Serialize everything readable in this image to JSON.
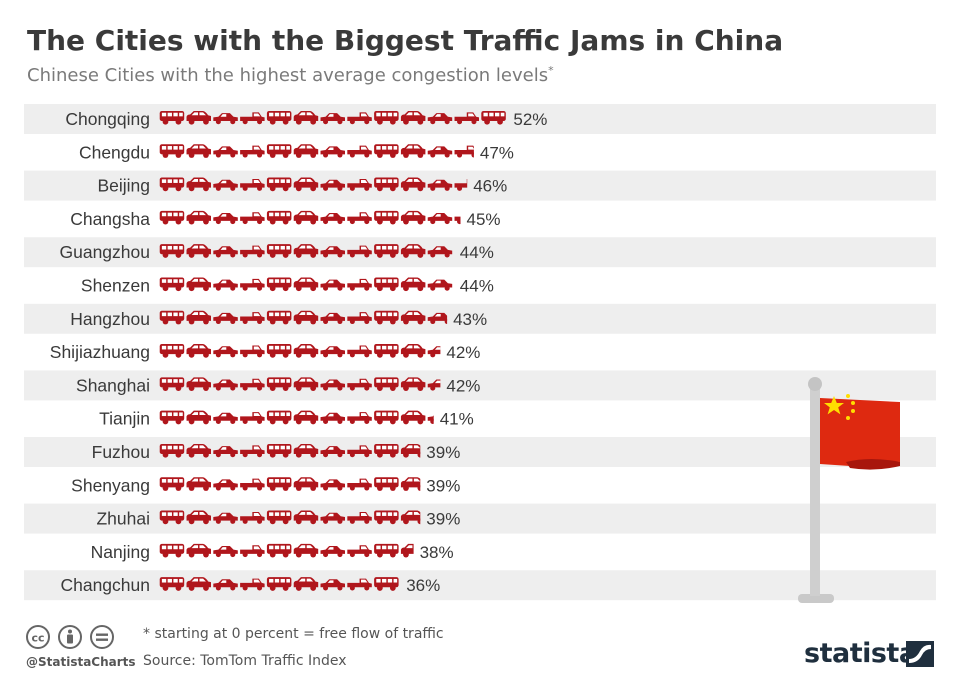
{
  "header": {
    "title": "The Cities with the Biggest Traffic Jams in China",
    "subtitle": "Chinese Cities with the highest average congestion levels",
    "subtitle_mark": "*"
  },
  "chart_data": {
    "type": "bar",
    "orientation": "horizontal",
    "mark": "car pictograms",
    "categories": [
      "Chongqing",
      "Chengdu",
      "Beijing",
      "Changsha",
      "Guangzhou",
      "Shenzen",
      "Hangzhou",
      "Shijiazhuang",
      "Shanghai",
      "Tianjin",
      "Fuzhou",
      "Shenyang",
      "Zhuhai",
      "Nanjing",
      "Changchun"
    ],
    "values": [
      52,
      47,
      46,
      45,
      44,
      44,
      43,
      42,
      42,
      41,
      39,
      39,
      39,
      38,
      36
    ],
    "value_labels": [
      "52%",
      "47%",
      "46%",
      "45%",
      "44%",
      "44%",
      "43%",
      "42%",
      "42%",
      "41%",
      "39%",
      "39%",
      "39%",
      "38%",
      "36%"
    ],
    "unit": "%",
    "grid": false,
    "legend": "none"
  },
  "footnote": "* starting at 0 percent = free flow of traffic",
  "source": "Source: TomTom Traffic Index",
  "handle": "@StatistaCharts",
  "brand": "statista",
  "colors": {
    "car": "#b0161c",
    "band": "#eeeeee",
    "title": "#3a3a3a",
    "flag": "#de2910",
    "star": "#ffde00"
  },
  "icons": [
    "cc-icon",
    "by-icon",
    "nd-icon",
    "china-flag-icon",
    "statista-logo-icon"
  ]
}
